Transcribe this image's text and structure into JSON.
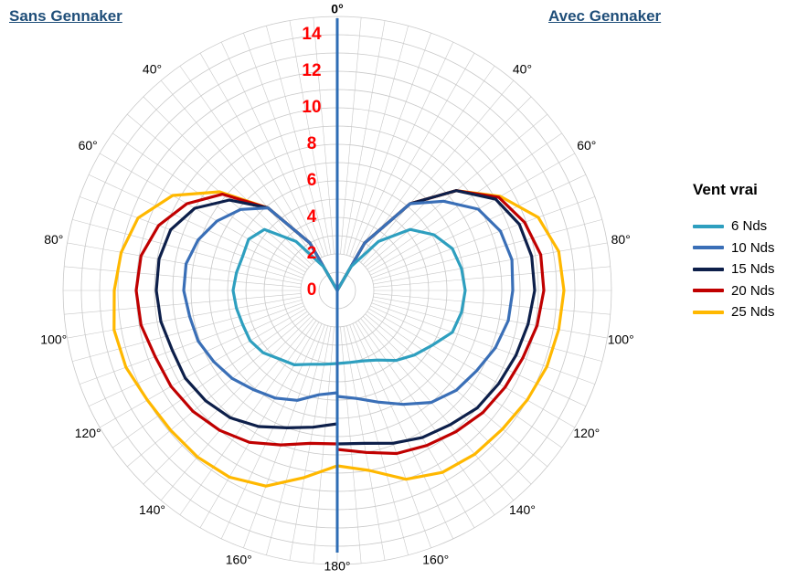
{
  "headers": {
    "left": "Sans Gennaker",
    "right": "Avec Gennaker"
  },
  "legend_title": "Vent vrai",
  "chart_data": {
    "type": "polar-line",
    "radial_ticks": [
      "0",
      "2",
      "4",
      "6",
      "8",
      "10",
      "12",
      "14"
    ],
    "radial_max": 15,
    "angle_labels": {
      "top": "0°",
      "bottom": "180°",
      "sides": [
        "40°",
        "60°",
        "80°",
        "100°",
        "120°",
        "140°",
        "160°"
      ]
    },
    "angles": [
      30,
      40,
      50,
      60,
      70,
      80,
      90,
      100,
      110,
      120,
      130,
      140,
      150,
      160,
      170,
      180
    ],
    "series": [
      {
        "name": "6 Nds",
        "color": "#2e9fbf",
        "left": [
          1.5,
          3.5,
          5.2,
          5.6,
          5.5,
          5.6,
          5.7,
          5.6,
          5.5,
          5.5,
          5.3,
          4.9,
          4.7,
          4.3,
          4.1,
          4.0
        ],
        "right": [
          1.5,
          3.5,
          5.2,
          6.1,
          6.7,
          6.9,
          7.0,
          6.9,
          6.7,
          6.0,
          5.5,
          5.0,
          4.4,
          4.1,
          4.0,
          4.0
        ]
      },
      {
        "name": "10 Nds",
        "color": "#3a6fb7",
        "left": [
          3.0,
          5.9,
          6.9,
          7.6,
          8.1,
          8.4,
          8.4,
          8.2,
          8.1,
          7.8,
          7.5,
          7.1,
          6.8,
          6.4,
          5.8,
          5.6
        ],
        "right": [
          3.0,
          6.2,
          7.6,
          8.9,
          9.5,
          9.7,
          9.6,
          9.5,
          9.2,
          8.8,
          8.5,
          8.0,
          7.2,
          6.5,
          6.0,
          5.8
        ]
      },
      {
        "name": "15 Nds",
        "color": "#0d1f4a",
        "left": [
          3.0,
          5.9,
          7.7,
          9.0,
          9.7,
          9.9,
          9.9,
          9.8,
          9.6,
          9.6,
          9.4,
          9.1,
          8.6,
          8.0,
          7.6,
          7.3
        ],
        "right": [
          3.0,
          6.2,
          8.5,
          10.0,
          10.6,
          10.8,
          10.8,
          10.6,
          10.4,
          10.2,
          10.0,
          9.6,
          9.3,
          8.9,
          8.5,
          8.4
        ]
      },
      {
        "name": "20 Nds",
        "color": "#c00000",
        "left": [
          3.0,
          5.9,
          8.2,
          9.5,
          10.4,
          10.9,
          11.0,
          10.9,
          10.6,
          10.5,
          10.3,
          10.0,
          9.6,
          9.0,
          8.5,
          8.4
        ],
        "right": [
          3.0,
          6.2,
          8.5,
          10.2,
          10.9,
          11.3,
          11.3,
          11.1,
          10.8,
          10.6,
          10.4,
          10.1,
          9.8,
          9.5,
          9.0,
          8.7
        ]
      },
      {
        "name": "25 Nds",
        "color": "#ffb800",
        "left": [
          3.0,
          5.9,
          8.4,
          10.4,
          11.6,
          12.0,
          12.2,
          12.4,
          12.3,
          12.0,
          11.9,
          11.9,
          11.8,
          11.4,
          10.4,
          9.6
        ],
        "right": [
          3.0,
          6.2,
          8.5,
          10.3,
          11.7,
          12.3,
          12.4,
          12.3,
          12.2,
          12.0,
          11.8,
          11.7,
          11.5,
          11.0,
          10.0,
          9.6
        ]
      }
    ],
    "colors": {
      "tick_labels": "#ff0000",
      "center_axis": "#2e6db5",
      "grid": "#c8c8c8"
    }
  }
}
